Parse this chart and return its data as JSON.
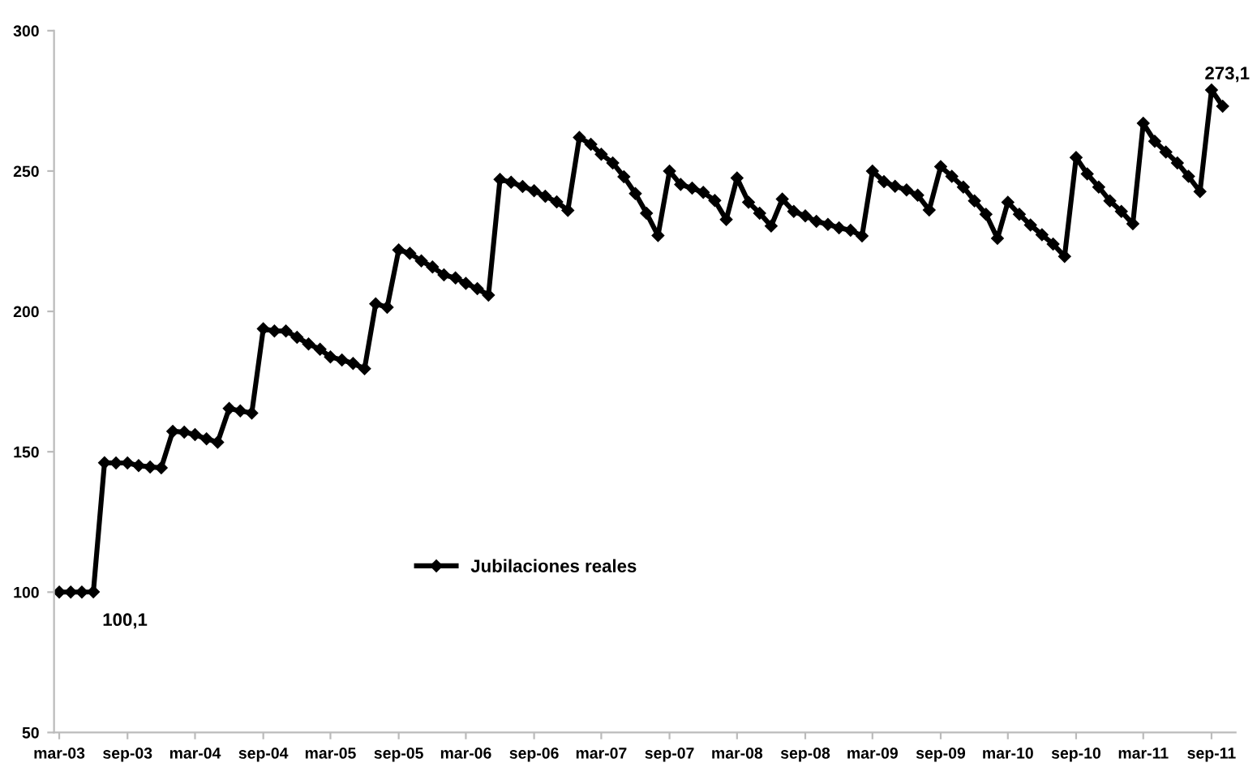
{
  "chart_data": {
    "type": "line",
    "x": [
      "2003-03",
      "2003-04",
      "2003-05",
      "2003-06",
      "2003-07",
      "2003-08",
      "2003-09",
      "2003-10",
      "2003-11",
      "2003-12",
      "2004-01",
      "2004-02",
      "2004-03",
      "2004-04",
      "2004-05",
      "2004-06",
      "2004-07",
      "2004-08",
      "2004-09",
      "2004-10",
      "2004-11",
      "2004-12",
      "2005-01",
      "2005-02",
      "2005-03",
      "2005-04",
      "2005-05",
      "2005-06",
      "2005-07",
      "2005-08",
      "2005-09",
      "2005-10",
      "2005-11",
      "2005-12",
      "2006-01",
      "2006-02",
      "2006-03",
      "2006-04",
      "2006-05",
      "2006-06",
      "2006-07",
      "2006-08",
      "2006-09",
      "2006-10",
      "2006-11",
      "2006-12",
      "2007-01",
      "2007-02",
      "2007-03",
      "2007-04",
      "2007-05",
      "2007-06",
      "2007-07",
      "2007-08",
      "2007-09",
      "2007-10",
      "2007-11",
      "2007-12",
      "2008-01",
      "2008-02",
      "2008-03",
      "2008-04",
      "2008-05",
      "2008-06",
      "2008-07",
      "2008-08",
      "2008-09",
      "2008-10",
      "2008-11",
      "2008-12",
      "2009-01",
      "2009-02",
      "2009-03",
      "2009-04",
      "2009-05",
      "2009-06",
      "2009-07",
      "2009-08",
      "2009-09",
      "2009-10",
      "2009-11",
      "2009-12",
      "2010-01",
      "2010-02",
      "2010-03",
      "2010-04",
      "2010-05",
      "2010-06",
      "2010-07",
      "2010-08",
      "2010-09",
      "2010-10",
      "2010-11",
      "2010-12",
      "2011-01",
      "2011-02",
      "2011-03",
      "2011-04",
      "2011-05",
      "2011-06",
      "2011-07",
      "2011-08",
      "2011-09",
      "2011-10"
    ],
    "series": [
      {
        "name": "Jubilaciones reales",
        "color": "#000000",
        "values": [
          100,
          100,
          100,
          100.1,
          146.1,
          146,
          146,
          145.1,
          144.6,
          144.3,
          157.3,
          157,
          156.1,
          154.6,
          153.4,
          165.4,
          164.6,
          163.8,
          193.8,
          193,
          193,
          190.8,
          188.4,
          186.5,
          183.8,
          182.7,
          181.5,
          179.6,
          202.7,
          201.5,
          221.9,
          220.7,
          218,
          215.8,
          213,
          211.9,
          210,
          208.1,
          205.8,
          247,
          246,
          244.5,
          243,
          241,
          239,
          236,
          262,
          259.5,
          256,
          252.9,
          248,
          242,
          235,
          227,
          250,
          245.2,
          243.9,
          242.4,
          239.5,
          232.7,
          247.5,
          238.9,
          235,
          230.4,
          240,
          235.6,
          234,
          232.1,
          231,
          229.8,
          228.9,
          226.9,
          250,
          246.2,
          244.6,
          243.3,
          241.4,
          236.1,
          251.6,
          248.1,
          244.3,
          239.4,
          234.6,
          226,
          238.9,
          234.6,
          230.8,
          227.3,
          224,
          219.6,
          254.8,
          249,
          244.3,
          239.4,
          235.6,
          231.2,
          267,
          260.6,
          256.8,
          252.9,
          248.1,
          242.7,
          278.9,
          273.1
        ],
        "value_labels": [
          null,
          null,
          null,
          "100,1",
          null,
          null,
          null,
          null,
          null,
          null,
          null,
          null,
          null,
          null,
          null,
          null,
          null,
          null,
          null,
          null,
          null,
          null,
          null,
          null,
          null,
          null,
          null,
          null,
          null,
          null,
          null,
          null,
          null,
          null,
          null,
          null,
          null,
          null,
          null,
          null,
          null,
          null,
          null,
          null,
          null,
          null,
          null,
          null,
          null,
          null,
          null,
          null,
          null,
          null,
          null,
          null,
          null,
          null,
          null,
          null,
          null,
          null,
          null,
          null,
          null,
          null,
          null,
          null,
          null,
          null,
          null,
          null,
          null,
          null,
          null,
          null,
          null,
          null,
          null,
          null,
          null,
          null,
          null,
          null,
          null,
          null,
          null,
          null,
          null,
          null,
          null,
          null,
          null,
          null,
          null,
          null,
          null,
          null,
          null,
          null,
          null,
          null,
          null,
          "273,1"
        ]
      }
    ],
    "xlim": [
      "2003-02-15",
      "2011-11-05"
    ],
    "xticks": [
      {
        "value": "2003-03",
        "label": "mar-03"
      },
      {
        "value": "2003-09",
        "label": "sep-03"
      },
      {
        "value": "2004-03",
        "label": "mar-04"
      },
      {
        "value": "2004-09",
        "label": "sep-04"
      },
      {
        "value": "2005-03",
        "label": "mar-05"
      },
      {
        "value": "2005-09",
        "label": "sep-05"
      },
      {
        "value": "2006-03",
        "label": "mar-06"
      },
      {
        "value": "2006-09",
        "label": "sep-06"
      },
      {
        "value": "2007-03",
        "label": "mar-07"
      },
      {
        "value": "2007-09",
        "label": "sep-07"
      },
      {
        "value": "2008-03",
        "label": "mar-08"
      },
      {
        "value": "2008-09",
        "label": "sep-08"
      },
      {
        "value": "2009-03",
        "label": "mar-09"
      },
      {
        "value": "2009-09",
        "label": "sep-09"
      },
      {
        "value": "2010-03",
        "label": "mar-10"
      },
      {
        "value": "2010-09",
        "label": "sep-10"
      },
      {
        "value": "2011-03",
        "label": "mar-11"
      },
      {
        "value": "2011-09",
        "label": "sep-11"
      }
    ],
    "ylim": [
      50,
      300
    ],
    "yticks": [
      50,
      100,
      150,
      200,
      250,
      300
    ],
    "grid": false,
    "legend": "lower center",
    "marker": "diamond",
    "line_style": "solid"
  }
}
